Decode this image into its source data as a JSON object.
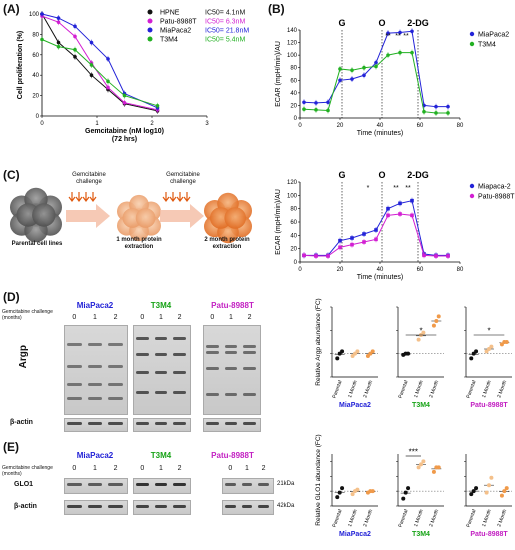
{
  "panels": {
    "A": "(A)",
    "B": "(B)",
    "C": "(C)",
    "D": "(D)",
    "E": "(E)"
  },
  "colors": {
    "hpne": "#111111",
    "patu": "#d21fd2",
    "mia": "#2323d8",
    "t3m4": "#22b022",
    "orange_light": "#f4c08a",
    "orange": "#f09a4a",
    "orange_dark": "#e0702a"
  },
  "chart_data": [
    {
      "id": "A",
      "type": "line",
      "xlabel": "Gemcitabine (nM log10)",
      "xlabel2": "(72 hrs)",
      "ylabel": "Cell proliferation (%)",
      "xlim": [
        0,
        3
      ],
      "ylim": [
        0,
        100
      ],
      "xticks": [
        "0",
        "1",
        "2",
        "3"
      ],
      "yticks": [
        "0",
        "20",
        "40",
        "60",
        "80",
        "100"
      ],
      "series": [
        {
          "name": "HPNE",
          "ic50": "IC50= 4.1nM",
          "color": "#111111",
          "x": [
            0,
            0.3,
            0.6,
            0.9,
            1.2,
            1.5,
            2.1
          ],
          "y": [
            100,
            72,
            58,
            40,
            26,
            12,
            5
          ]
        },
        {
          "name": "Patu-8988T",
          "ic50": "IC50= 6.3nM",
          "color": "#d21fd2",
          "x": [
            0,
            0.3,
            0.6,
            0.9,
            1.2,
            1.5,
            2.1
          ],
          "y": [
            98,
            92,
            78,
            52,
            28,
            13,
            6
          ]
        },
        {
          "name": "MiaPaca2",
          "ic50": "IC50= 21.8nM",
          "color": "#2323d8",
          "x": [
            0,
            0.3,
            0.6,
            0.9,
            1.2,
            1.5,
            2.1
          ],
          "y": [
            100,
            96,
            88,
            72,
            56,
            22,
            8
          ]
        },
        {
          "name": "T3M4",
          "ic50": "IC50= 5.4nM",
          "color": "#22b022",
          "x": [
            0,
            0.3,
            0.6,
            0.9,
            1.2,
            1.5,
            2.1
          ],
          "y": [
            75,
            68,
            65,
            50,
            34,
            20,
            10
          ]
        }
      ]
    },
    {
      "id": "B1",
      "type": "line",
      "xlabel": "Time (minutes)",
      "ylabel": "ECAR (mpH/min)/AU",
      "xlim": [
        0,
        80
      ],
      "ylim": [
        0,
        140
      ],
      "xticks": [
        "0",
        "20",
        "40",
        "60",
        "80"
      ],
      "yticks": [
        "0",
        "20",
        "40",
        "60",
        "80",
        "100",
        "120",
        "140"
      ],
      "markers": [
        {
          "label": "G",
          "x": 21
        },
        {
          "label": "O",
          "x": 41
        },
        {
          "label": "2-DG",
          "x": 59
        }
      ],
      "stars": [
        {
          "x": 44,
          "text": "**"
        },
        {
          "x": 49,
          "text": "**"
        },
        {
          "x": 53,
          "text": "**"
        }
      ],
      "series": [
        {
          "name": "MiaPaca2",
          "color": "#2323d8",
          "x": [
            2,
            8,
            14,
            20,
            26,
            32,
            38,
            44,
            50,
            56,
            62,
            68,
            74
          ],
          "y": [
            25,
            24,
            25,
            60,
            62,
            68,
            88,
            135,
            136,
            138,
            20,
            18,
            18
          ]
        },
        {
          "name": "T3M4",
          "color": "#22b022",
          "x": [
            2,
            8,
            14,
            20,
            26,
            32,
            38,
            44,
            50,
            56,
            62,
            68,
            74
          ],
          "y": [
            14,
            13,
            12,
            78,
            76,
            80,
            82,
            100,
            104,
            104,
            10,
            8,
            8
          ]
        }
      ]
    },
    {
      "id": "B2",
      "type": "line",
      "xlabel": "Time (minutes)",
      "ylabel": "ECAR (mpH/min)/AU",
      "xlim": [
        0,
        80
      ],
      "ylim": [
        0,
        120
      ],
      "xticks": [
        "0",
        "20",
        "40",
        "60",
        "80"
      ],
      "yticks": [
        "0",
        "20",
        "40",
        "60",
        "80",
        "100",
        "120"
      ],
      "markers": [
        {
          "label": "G",
          "x": 21
        },
        {
          "label": "O",
          "x": 41
        },
        {
          "label": "2-DG",
          "x": 59
        }
      ],
      "stars": [
        {
          "x": 34,
          "text": "*"
        },
        {
          "x": 48,
          "text": "**"
        },
        {
          "x": 54,
          "text": "**"
        }
      ],
      "series": [
        {
          "name": "Miapaca-2",
          "color": "#2323d8",
          "x": [
            2,
            8,
            14,
            20,
            26,
            32,
            38,
            44,
            50,
            56,
            62,
            68,
            74
          ],
          "y": [
            10,
            10,
            10,
            32,
            36,
            42,
            48,
            80,
            88,
            92,
            12,
            10,
            10
          ]
        },
        {
          "name": "Patu-8988T",
          "color": "#d21fd2",
          "x": [
            2,
            8,
            14,
            20,
            26,
            32,
            38,
            44,
            50,
            56,
            62,
            68,
            74
          ],
          "y": [
            10,
            9,
            9,
            22,
            26,
            30,
            34,
            70,
            72,
            70,
            10,
            9,
            9
          ]
        }
      ]
    }
  ],
  "panelC": {
    "challenge": "Gemcitabine challenge",
    "captions": [
      "Parental cell lines",
      "1 month protein extraction",
      "2 month protein extraction"
    ]
  },
  "panelD": {
    "challenge_note": "Gemcitabine challenge (months)",
    "blots": [
      {
        "name": "MiaPaca2",
        "lanes": [
          "0",
          "1",
          "2"
        ]
      },
      {
        "name": "T3M4",
        "lanes": [
          "0",
          "1",
          "2"
        ]
      },
      {
        "name": "Patu-8988T",
        "lanes": [
          "0",
          "1",
          "2"
        ]
      }
    ],
    "row_argp": "Argp",
    "row_actin": "β-actin",
    "ylabel": "Relative Argp abundance (FC)",
    "xcats": [
      "Parental",
      "1 Month",
      "2 Month"
    ],
    "sig": [
      "*",
      "*"
    ],
    "dots": {
      "MiaPaca2": [
        [
          0.8,
          1.0,
          1.1
        ],
        [
          0.9,
          1.0,
          1.1
        ],
        [
          0.9,
          1.0,
          1.1
        ]
      ],
      "T3M4": [
        [
          0.95,
          1.0,
          1.0
        ],
        [
          1.6,
          1.8,
          1.9
        ],
        [
          2.2,
          2.4,
          2.6
        ]
      ],
      "Patu-8988T": [
        [
          0.8,
          1.0,
          1.1
        ],
        [
          1.1,
          1.2,
          1.3
        ],
        [
          1.4,
          1.5,
          1.5
        ]
      ]
    }
  },
  "panelE": {
    "challenge_note": "Gemcitabine challenge (months)",
    "blots": [
      {
        "name": "MiaPaca2",
        "lanes": [
          "0",
          "1",
          "2"
        ]
      },
      {
        "name": "T3M4",
        "lanes": [
          "0",
          "1",
          "2"
        ]
      },
      {
        "name": "Patu-8988T",
        "lanes": [
          "0",
          "1",
          "2"
        ]
      }
    ],
    "row_glo1": "GLO1",
    "row_actin": "β-actin",
    "kda1": "21kDa",
    "kda2": "42kDa",
    "ylabel": "Relative GLO1 abundance (FC)",
    "xcats": [
      "Parental",
      "1 Month",
      "2 Month"
    ],
    "sig": [
      "***"
    ],
    "dots": {
      "MiaPaca2": [
        [
          0.6,
          0.9,
          1.2
        ],
        [
          0.8,
          1.0,
          1.1
        ],
        [
          0.9,
          1.0,
          1.0
        ]
      ],
      "T3M4": [
        [
          0.5,
          0.9,
          1.2
        ],
        [
          2.6,
          2.8,
          3.0
        ],
        [
          2.3,
          2.6,
          2.6
        ]
      ],
      "Patu-8988T": [
        [
          0.8,
          1.0,
          1.2
        ],
        [
          0.9,
          1.4,
          1.9
        ],
        [
          0.7,
          1.0,
          1.2
        ]
      ]
    }
  }
}
